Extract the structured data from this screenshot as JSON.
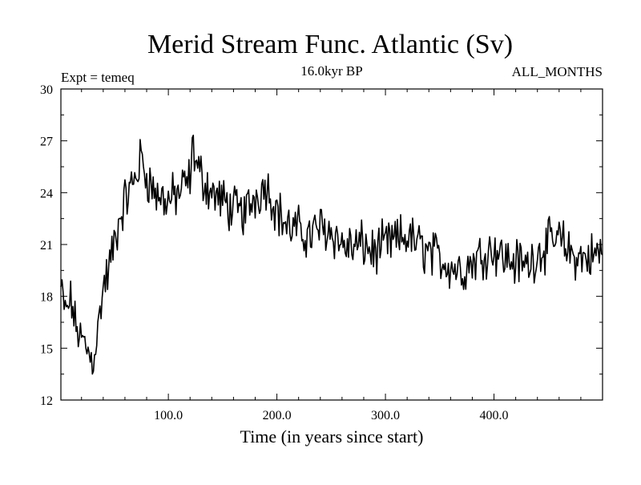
{
  "chart_data": {
    "type": "line",
    "title": "Merid Stream Func. Atlantic (Sv)",
    "subtitle": "16.0kyr BP",
    "experiment_label": "Expt = temeq",
    "period_label": "ALL_MONTHS",
    "xlabel": "Time (in years since start)",
    "ylabel": "",
    "xlim": [
      1,
      500
    ],
    "ylim": [
      12,
      30
    ],
    "xticks": [
      100,
      200,
      300,
      400
    ],
    "xtick_labels": [
      "100.0",
      "200.0",
      "300.0",
      "400.0"
    ],
    "yticks": [
      12,
      15,
      18,
      21,
      24,
      27,
      30
    ],
    "ytick_labels": [
      "12",
      "15",
      "18",
      "21",
      "24",
      "27",
      "30"
    ],
    "grid": false,
    "series": [
      {
        "name": "Merid Stream Func. Atlantic",
        "sample_years": [
          1,
          5,
          10,
          15,
          20,
          25,
          30,
          35,
          40,
          45,
          50,
          55,
          60,
          65,
          70,
          75,
          80,
          85,
          90,
          95,
          100,
          110,
          120,
          123,
          126,
          130,
          140,
          150,
          160,
          170,
          180,
          190,
          200,
          210,
          220,
          230,
          240,
          250,
          260,
          270,
          280,
          290,
          300,
          310,
          320,
          330,
          340,
          350,
          360,
          370,
          380,
          390,
          400,
          410,
          420,
          430,
          440,
          450,
          460,
          470,
          480,
          490,
          500
        ],
        "values": [
          18.5,
          17.0,
          17.8,
          16.2,
          15.5,
          15.0,
          14.2,
          16.0,
          18.5,
          19.5,
          21.0,
          22.5,
          23.5,
          24.2,
          25.0,
          26.0,
          25.0,
          24.3,
          23.8,
          23.7,
          23.5,
          24.0,
          24.8,
          26.8,
          25.5,
          25.0,
          24.0,
          23.5,
          23.0,
          22.8,
          23.8,
          24.5,
          23.0,
          22.0,
          21.8,
          21.5,
          22.0,
          21.8,
          21.0,
          20.8,
          21.0,
          20.5,
          21.0,
          21.2,
          21.5,
          21.0,
          20.5,
          20.2,
          19.8,
          19.5,
          20.0,
          20.5,
          20.8,
          20.2,
          20.0,
          19.8,
          20.5,
          21.0,
          21.3,
          20.5,
          20.2,
          20.3,
          20.6
        ],
        "color": "#000000"
      }
    ]
  }
}
